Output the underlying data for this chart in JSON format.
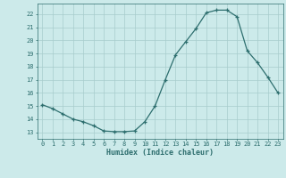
{
  "x": [
    0,
    1,
    2,
    3,
    4,
    5,
    6,
    7,
    8,
    9,
    10,
    11,
    12,
    13,
    14,
    15,
    16,
    17,
    18,
    19,
    20,
    21,
    22,
    23
  ],
  "y": [
    15.1,
    14.8,
    14.4,
    14.0,
    13.8,
    13.5,
    13.1,
    13.05,
    13.05,
    13.1,
    13.8,
    15.0,
    17.0,
    18.9,
    19.9,
    20.9,
    22.1,
    22.3,
    22.3,
    21.8,
    19.2,
    18.3,
    17.2,
    16.0
  ],
  "xlim": [
    -0.5,
    23.5
  ],
  "ylim": [
    12.5,
    22.8
  ],
  "yticks": [
    13,
    14,
    15,
    16,
    17,
    18,
    19,
    20,
    21,
    22
  ],
  "xticks": [
    0,
    1,
    2,
    3,
    4,
    5,
    6,
    7,
    8,
    9,
    10,
    11,
    12,
    13,
    14,
    15,
    16,
    17,
    18,
    19,
    20,
    21,
    22,
    23
  ],
  "xlabel": "Humidex (Indice chaleur)",
  "line_color": "#2d6e6e",
  "bg_color": "#cceaea",
  "grid_color": "#a8cccc",
  "marker": "+",
  "marker_size": 3,
  "linewidth": 0.9,
  "label_fontsize": 6,
  "tick_fontsize": 5
}
